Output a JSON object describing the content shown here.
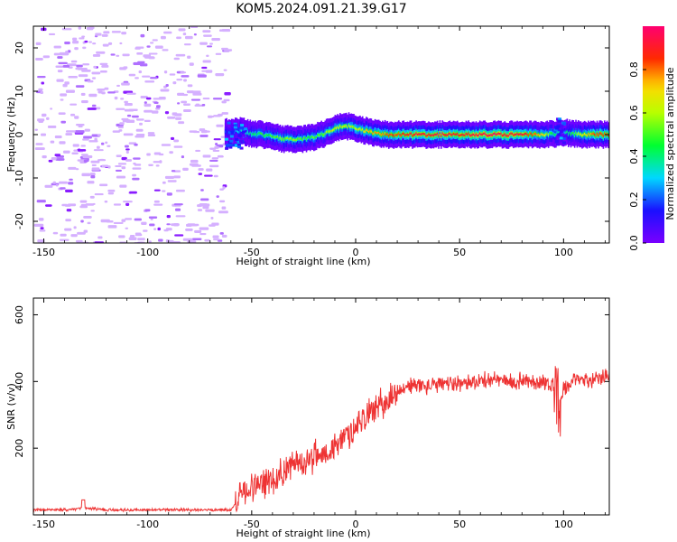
{
  "figure": {
    "title": "KOM5.2024.091.21.39.G17"
  },
  "chart_data": [
    {
      "type": "heatmap",
      "xlabel": "Height of straight line (km)",
      "ylabel": "Frequency (Hz)",
      "xlim": [
        -155,
        122
      ],
      "ylim": [
        -25,
        25
      ],
      "xticks": [
        -150,
        -100,
        -50,
        0,
        50,
        100
      ],
      "yticks": [
        -20,
        -10,
        0,
        10,
        20
      ],
      "colorbar": {
        "label": "Normalized spectral amplitude",
        "range": [
          0,
          1
        ],
        "ticks": [
          "0.0",
          "0.2",
          "0.4",
          "0.6",
          "0.8"
        ],
        "colormap": "gist_rainbow_r"
      },
      "ridge": {
        "x": [
          -62,
          -55,
          -50,
          -45,
          -40,
          -35,
          -30,
          -25,
          -20,
          -15,
          -10,
          -5,
          0,
          5,
          10,
          15,
          20,
          30,
          40,
          50,
          60,
          70,
          80,
          90,
          95,
          100,
          105,
          110,
          115,
          120
        ],
        "freq": [
          0.5,
          0.8,
          0.2,
          0.0,
          -0.5,
          -1.0,
          -1.0,
          -1.0,
          -0.5,
          0.2,
          1.5,
          2.0,
          1.5,
          0.8,
          0.3,
          0.0,
          0.0,
          0.0,
          0.0,
          0.0,
          0.0,
          0.0,
          0.0,
          -0.1,
          0.2,
          0.5,
          0.2,
          0.0,
          0.0,
          0.0
        ],
        "amp": [
          0.2,
          0.3,
          0.4,
          0.45,
          0.5,
          0.55,
          0.55,
          0.5,
          0.5,
          0.55,
          0.65,
          0.6,
          0.6,
          0.7,
          0.75,
          0.8,
          0.85,
          0.9,
          0.9,
          0.9,
          0.95,
          0.95,
          0.9,
          0.7,
          0.4,
          0.3,
          0.5,
          0.7,
          0.85,
          0.85
        ]
      }
    },
    {
      "type": "line",
      "xlabel": "Height of straight line (km)",
      "ylabel": "SNR (v/v)",
      "xlim": [
        -155,
        122
      ],
      "ylim": [
        0,
        650
      ],
      "xticks": [
        -150,
        -100,
        -50,
        0,
        50,
        100
      ],
      "yticks": [
        200,
        400,
        600
      ],
      "color": "#ee3333",
      "series": [
        {
          "x": [
            -155,
            -140,
            -130,
            -120,
            -100,
            -80,
            -60,
            -57,
            -55,
            -50,
            -45,
            -40,
            -35,
            -30,
            -25,
            -20,
            -15,
            -10,
            -5,
            0,
            5,
            10,
            15,
            20,
            25,
            30,
            35,
            40,
            45,
            50,
            55,
            60,
            65,
            70,
            75,
            80,
            85,
            90,
            95,
            97,
            100,
            105,
            110,
            115,
            120,
            122
          ],
          "values": [
            15,
            15,
            20,
            15,
            15,
            15,
            15,
            40,
            70,
            80,
            90,
            110,
            130,
            150,
            160,
            175,
            185,
            200,
            230,
            270,
            300,
            320,
            340,
            370,
            385,
            390,
            385,
            390,
            395,
            395,
            400,
            400,
            405,
            405,
            395,
            405,
            400,
            400,
            390,
            300,
            380,
            400,
            405,
            410,
            420,
            415
          ]
        }
      ]
    }
  ]
}
